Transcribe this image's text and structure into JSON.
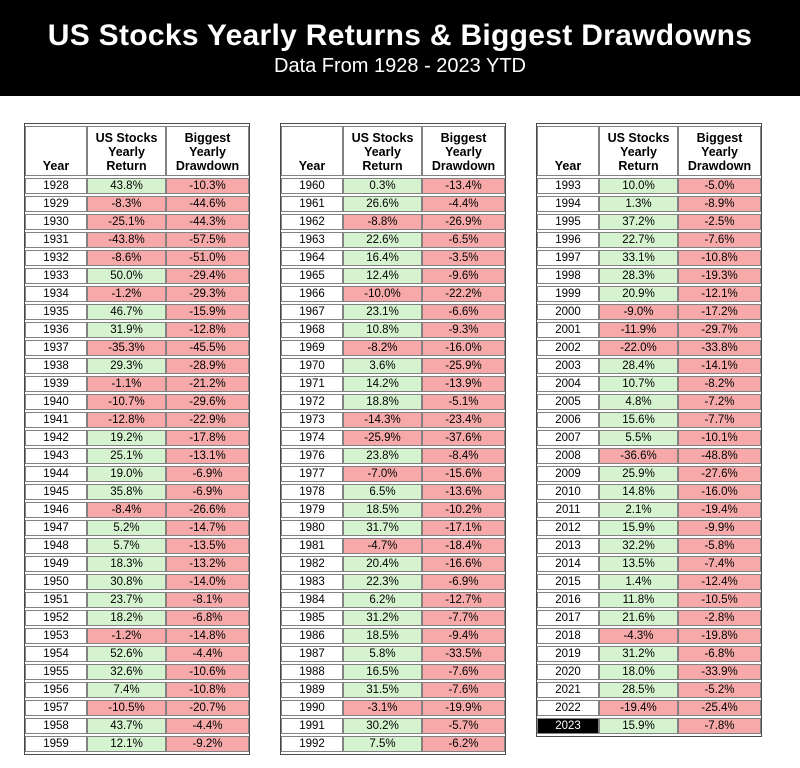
{
  "banner": {
    "title": "US Stocks Yearly Returns & Biggest Drawdowns",
    "subtitle": "Data From 1928 - 2023 YTD"
  },
  "columns": {
    "year": "Year",
    "return": "US Stocks\nYearly\nReturn",
    "drawdown": "Biggest\nYearly\nDrawdown"
  },
  "colors": {
    "positive_bg": "#d6f3d0",
    "negative_bg": "#f7a9a9",
    "year_bg": "#ffffff",
    "highlight_year_bg": "#000000",
    "highlight_year_text": "#ffffff"
  },
  "highlight_year": "2023",
  "chart_data": {
    "type": "table",
    "title": "US Stocks Yearly Returns & Biggest Drawdowns",
    "subtitle": "Data From 1928 - 2023 YTD",
    "columns": [
      "Year",
      "US Stocks Yearly Return",
      "Biggest Yearly Drawdown"
    ],
    "tables": [
      {
        "rows": [
          [
            "1928",
            "43.8%",
            "-10.3%"
          ],
          [
            "1929",
            "-8.3%",
            "-44.6%"
          ],
          [
            "1930",
            "-25.1%",
            "-44.3%"
          ],
          [
            "1931",
            "-43.8%",
            "-57.5%"
          ],
          [
            "1932",
            "-8.6%",
            "-51.0%"
          ],
          [
            "1933",
            "50.0%",
            "-29.4%"
          ],
          [
            "1934",
            "-1.2%",
            "-29.3%"
          ],
          [
            "1935",
            "46.7%",
            "-15.9%"
          ],
          [
            "1936",
            "31.9%",
            "-12.8%"
          ],
          [
            "1937",
            "-35.3%",
            "-45.5%"
          ],
          [
            "1938",
            "29.3%",
            "-28.9%"
          ],
          [
            "1939",
            "-1.1%",
            "-21.2%"
          ],
          [
            "1940",
            "-10.7%",
            "-29.6%"
          ],
          [
            "1941",
            "-12.8%",
            "-22.9%"
          ],
          [
            "1942",
            "19.2%",
            "-17.8%"
          ],
          [
            "1943",
            "25.1%",
            "-13.1%"
          ],
          [
            "1944",
            "19.0%",
            "-6.9%"
          ],
          [
            "1945",
            "35.8%",
            "-6.9%"
          ],
          [
            "1946",
            "-8.4%",
            "-26.6%"
          ],
          [
            "1947",
            "5.2%",
            "-14.7%"
          ],
          [
            "1948",
            "5.7%",
            "-13.5%"
          ],
          [
            "1949",
            "18.3%",
            "-13.2%"
          ],
          [
            "1950",
            "30.8%",
            "-14.0%"
          ],
          [
            "1951",
            "23.7%",
            "-8.1%"
          ],
          [
            "1952",
            "18.2%",
            "-6.8%"
          ],
          [
            "1953",
            "-1.2%",
            "-14.8%"
          ],
          [
            "1954",
            "52.6%",
            "-4.4%"
          ],
          [
            "1955",
            "32.6%",
            "-10.6%"
          ],
          [
            "1956",
            "7.4%",
            "-10.8%"
          ],
          [
            "1957",
            "-10.5%",
            "-20.7%"
          ],
          [
            "1958",
            "43.7%",
            "-4.4%"
          ],
          [
            "1959",
            "12.1%",
            "-9.2%"
          ]
        ]
      },
      {
        "rows": [
          [
            "1960",
            "0.3%",
            "-13.4%"
          ],
          [
            "1961",
            "26.6%",
            "-4.4%"
          ],
          [
            "1962",
            "-8.8%",
            "-26.9%"
          ],
          [
            "1963",
            "22.6%",
            "-6.5%"
          ],
          [
            "1964",
            "16.4%",
            "-3.5%"
          ],
          [
            "1965",
            "12.4%",
            "-9.6%"
          ],
          [
            "1966",
            "-10.0%",
            "-22.2%"
          ],
          [
            "1967",
            "23.1%",
            "-6.6%"
          ],
          [
            "1968",
            "10.8%",
            "-9.3%"
          ],
          [
            "1969",
            "-8.2%",
            "-16.0%"
          ],
          [
            "1970",
            "3.6%",
            "-25.9%"
          ],
          [
            "1971",
            "14.2%",
            "-13.9%"
          ],
          [
            "1972",
            "18.8%",
            "-5.1%"
          ],
          [
            "1973",
            "-14.3%",
            "-23.4%"
          ],
          [
            "1974",
            "-25.9%",
            "-37.6%"
          ],
          [
            "1976",
            "23.8%",
            "-8.4%"
          ],
          [
            "1977",
            "-7.0%",
            "-15.6%"
          ],
          [
            "1978",
            "6.5%",
            "-13.6%"
          ],
          [
            "1979",
            "18.5%",
            "-10.2%"
          ],
          [
            "1980",
            "31.7%",
            "-17.1%"
          ],
          [
            "1981",
            "-4.7%",
            "-18.4%"
          ],
          [
            "1982",
            "20.4%",
            "-16.6%"
          ],
          [
            "1983",
            "22.3%",
            "-6.9%"
          ],
          [
            "1984",
            "6.2%",
            "-12.7%"
          ],
          [
            "1985",
            "31.2%",
            "-7.7%"
          ],
          [
            "1986",
            "18.5%",
            "-9.4%"
          ],
          [
            "1987",
            "5.8%",
            "-33.5%"
          ],
          [
            "1988",
            "16.5%",
            "-7.6%"
          ],
          [
            "1989",
            "31.5%",
            "-7.6%"
          ],
          [
            "1990",
            "-3.1%",
            "-19.9%"
          ],
          [
            "1991",
            "30.2%",
            "-5.7%"
          ],
          [
            "1992",
            "7.5%",
            "-6.2%"
          ]
        ]
      },
      {
        "rows": [
          [
            "1993",
            "10.0%",
            "-5.0%"
          ],
          [
            "1994",
            "1.3%",
            "-8.9%"
          ],
          [
            "1995",
            "37.2%",
            "-2.5%"
          ],
          [
            "1996",
            "22.7%",
            "-7.6%"
          ],
          [
            "1997",
            "33.1%",
            "-10.8%"
          ],
          [
            "1998",
            "28.3%",
            "-19.3%"
          ],
          [
            "1999",
            "20.9%",
            "-12.1%"
          ],
          [
            "2000",
            "-9.0%",
            "-17.2%"
          ],
          [
            "2001",
            "-11.9%",
            "-29.7%"
          ],
          [
            "2002",
            "-22.0%",
            "-33.8%"
          ],
          [
            "2003",
            "28.4%",
            "-14.1%"
          ],
          [
            "2004",
            "10.7%",
            "-8.2%"
          ],
          [
            "2005",
            "4.8%",
            "-7.2%"
          ],
          [
            "2006",
            "15.6%",
            "-7.7%"
          ],
          [
            "2007",
            "5.5%",
            "-10.1%"
          ],
          [
            "2008",
            "-36.6%",
            "-48.8%"
          ],
          [
            "2009",
            "25.9%",
            "-27.6%"
          ],
          [
            "2010",
            "14.8%",
            "-16.0%"
          ],
          [
            "2011",
            "2.1%",
            "-19.4%"
          ],
          [
            "2012",
            "15.9%",
            "-9.9%"
          ],
          [
            "2013",
            "32.2%",
            "-5.8%"
          ],
          [
            "2014",
            "13.5%",
            "-7.4%"
          ],
          [
            "2015",
            "1.4%",
            "-12.4%"
          ],
          [
            "2016",
            "11.8%",
            "-10.5%"
          ],
          [
            "2017",
            "21.6%",
            "-2.8%"
          ],
          [
            "2018",
            "-4.3%",
            "-19.8%"
          ],
          [
            "2019",
            "31.2%",
            "-6.8%"
          ],
          [
            "2020",
            "18.0%",
            "-33.9%"
          ],
          [
            "2021",
            "28.5%",
            "-5.2%"
          ],
          [
            "2022",
            "-19.4%",
            "-25.4%"
          ],
          [
            "2023",
            "15.9%",
            "-7.8%"
          ]
        ]
      }
    ]
  }
}
